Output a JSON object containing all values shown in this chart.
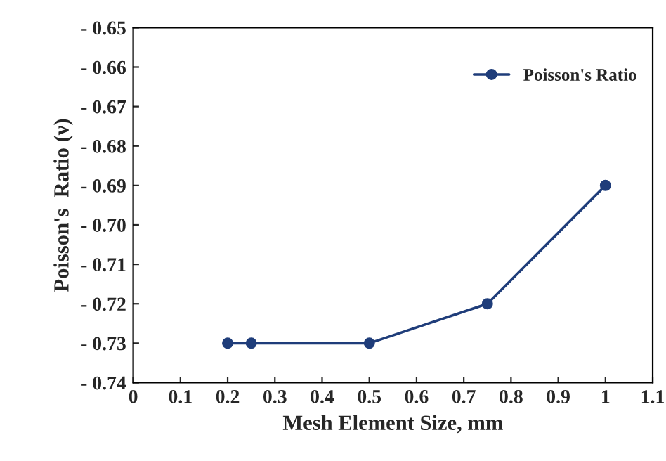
{
  "chart_data": {
    "type": "line",
    "xlabel": "Mesh Element Size, mm",
    "ylabel": "Poisson's  Ratio (ν)",
    "x": [
      0.2,
      0.25,
      0.5,
      0.75,
      1
    ],
    "series": [
      {
        "name": "Poisson's Ratio",
        "color": "#1f3d7a",
        "values": [
          -0.73,
          -0.73,
          -0.73,
          -0.72,
          -0.69
        ]
      }
    ],
    "xlim": [
      0,
      1.1
    ],
    "xticks": [
      0,
      0.1,
      0.2,
      0.3,
      0.4,
      0.5,
      0.6,
      0.7,
      0.8,
      0.9,
      1,
      1.1
    ],
    "ylim": [
      -0.74,
      -0.65
    ],
    "yticks": [
      {
        "value": -0.74,
        "label": "- 0.74"
      },
      {
        "value": -0.73,
        "label": "- 0.73"
      },
      {
        "value": -0.72,
        "label": "- 0.72"
      },
      {
        "value": -0.71,
        "label": "- 0.71"
      },
      {
        "value": -0.7,
        "label": "- 0.70"
      },
      {
        "value": -0.69,
        "label": "- 0.69"
      },
      {
        "value": -0.68,
        "label": "- 0.68"
      },
      {
        "value": -0.67,
        "label": "- 0.67"
      },
      {
        "value": -0.66,
        "label": "- 0.66"
      },
      {
        "value": -0.65,
        "label": "- 0.65"
      }
    ],
    "marker": "circle",
    "line_style": "solid",
    "grid": false,
    "legend": "top right"
  }
}
